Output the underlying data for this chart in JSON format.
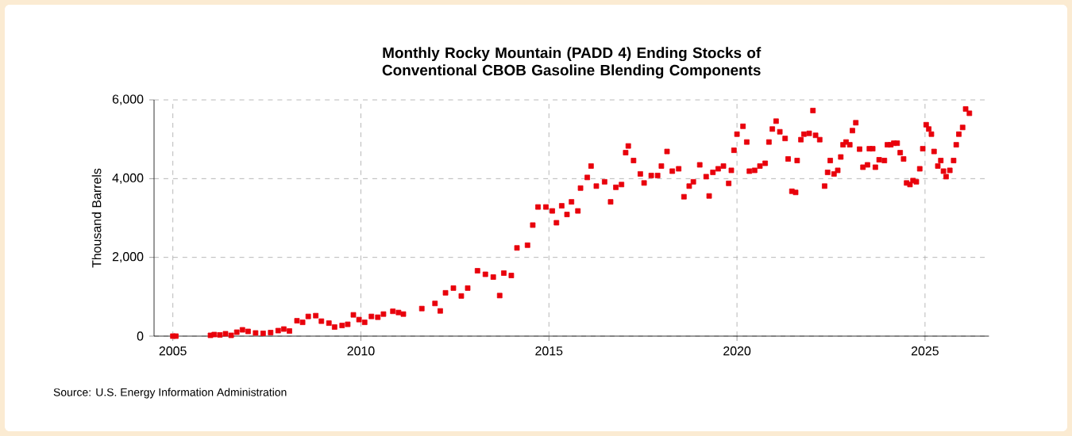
{
  "chart_data": {
    "type": "scatter",
    "title": "Monthly Rocky Mountain (PADD 4) Ending Stocks of Conventional CBOB Gasoline Blending Components",
    "ylabel": "Thousand Barrels",
    "annotations": [
      "Source: U.S. Energy Information Administration"
    ],
    "xlim": [
      2004.5,
      2026.7
    ],
    "xticks": [
      2005,
      2010,
      2015,
      2020,
      2025
    ],
    "ylim": [
      0,
      6000
    ],
    "yticks": [
      {
        "value": 0,
        "label": "0"
      },
      {
        "value": 2000,
        "label": "2,000"
      },
      {
        "value": 4000,
        "label": "4,000"
      },
      {
        "value": 6000,
        "label": "6,000"
      }
    ],
    "grid": true,
    "marker": "square",
    "series": [
      {
        "color": "#e8000b",
        "x": [
          2005.0,
          2005.08,
          2006.0,
          2006.1,
          2006.25,
          2006.4,
          2006.55,
          2006.7,
          2006.85,
          2007.0,
          2007.2,
          2007.4,
          2007.6,
          2007.8,
          2007.95,
          2008.1,
          2008.3,
          2008.45,
          2008.6,
          2008.8,
          2008.95,
          2009.15,
          2009.3,
          2009.5,
          2009.65,
          2009.8,
          2009.95,
          2010.1,
          2010.28,
          2010.45,
          2010.6,
          2010.85,
          2011.0,
          2011.13,
          2011.62,
          2011.97,
          2012.11,
          2012.25,
          2012.46,
          2012.67,
          2012.84,
          2013.1,
          2013.31,
          2013.52,
          2013.69,
          2013.8,
          2014.0,
          2014.15,
          2014.43,
          2014.57,
          2014.71,
          2014.92,
          2015.09,
          2015.2,
          2015.34,
          2015.48,
          2015.6,
          2015.77,
          2015.84,
          2016.02,
          2016.12,
          2016.26,
          2016.48,
          2016.64,
          2016.78,
          2016.93,
          2017.04,
          2017.11,
          2017.25,
          2017.43,
          2017.53,
          2017.72,
          2017.89,
          2017.99,
          2018.14,
          2018.28,
          2018.45,
          2018.59,
          2018.73,
          2018.84,
          2019.01,
          2019.18,
          2019.26,
          2019.36,
          2019.5,
          2019.64,
          2019.78,
          2019.85,
          2019.92,
          2020.0,
          2020.16,
          2020.26,
          2020.33,
          2020.47,
          2020.61,
          2020.75,
          2020.85,
          2020.94,
          2021.04,
          2021.14,
          2021.28,
          2021.36,
          2021.46,
          2021.56,
          2021.6,
          2021.7,
          2021.78,
          2021.92,
          2022.02,
          2022.09,
          2022.2,
          2022.33,
          2022.41,
          2022.48,
          2022.58,
          2022.68,
          2022.76,
          2022.82,
          2022.9,
          2023.0,
          2023.07,
          2023.16,
          2023.26,
          2023.35,
          2023.47,
          2023.52,
          2023.61,
          2023.68,
          2023.78,
          2023.92,
          2024.0,
          2024.09,
          2024.17,
          2024.26,
          2024.34,
          2024.43,
          2024.51,
          2024.6,
          2024.68,
          2024.77,
          2024.86,
          2024.94,
          2025.03,
          2025.1,
          2025.17,
          2025.24,
          2025.34,
          2025.42,
          2025.49,
          2025.56,
          2025.66,
          2025.76,
          2025.83,
          2025.9,
          2026.0,
          2026.08,
          2026.18
        ],
        "values": [
          0,
          0,
          20,
          40,
          30,
          60,
          20,
          100,
          160,
          120,
          80,
          70,
          90,
          140,
          180,
          130,
          390,
          350,
          500,
          520,
          380,
          330,
          230,
          270,
          300,
          540,
          420,
          350,
          500,
          480,
          560,
          630,
          600,
          560,
          700,
          830,
          640,
          1100,
          1220,
          1020,
          1220,
          1660,
          1570,
          1500,
          1030,
          1600,
          1540,
          2240,
          2310,
          2820,
          3280,
          3280,
          3180,
          2880,
          3310,
          3090,
          3410,
          3180,
          3760,
          4030,
          4320,
          3810,
          3920,
          3410,
          3780,
          3850,
          4660,
          4830,
          4460,
          4120,
          3890,
          4080,
          4080,
          4320,
          4690,
          4190,
          4250,
          3540,
          3810,
          3920,
          4350,
          4050,
          3560,
          4160,
          4250,
          4320,
          3880,
          4210,
          4720,
          5130,
          5330,
          4930,
          4190,
          4210,
          4320,
          4390,
          4930,
          5260,
          5460,
          5190,
          5020,
          4500,
          3680,
          3650,
          4460,
          4990,
          5130,
          5150,
          5730,
          5100,
          4990,
          3810,
          4160,
          4460,
          4120,
          4210,
          4550,
          4860,
          4930,
          4860,
          5220,
          5420,
          4750,
          4290,
          4350,
          4760,
          4760,
          4290,
          4480,
          4460,
          4860,
          4860,
          4900,
          4900,
          4660,
          4500,
          3890,
          3850,
          3950,
          3920,
          4250,
          4760,
          5370,
          5260,
          5130,
          4690,
          4320,
          4460,
          4190,
          4050,
          4210,
          4460,
          4860,
          5130,
          5300,
          5770,
          5660
        ]
      }
    ]
  }
}
